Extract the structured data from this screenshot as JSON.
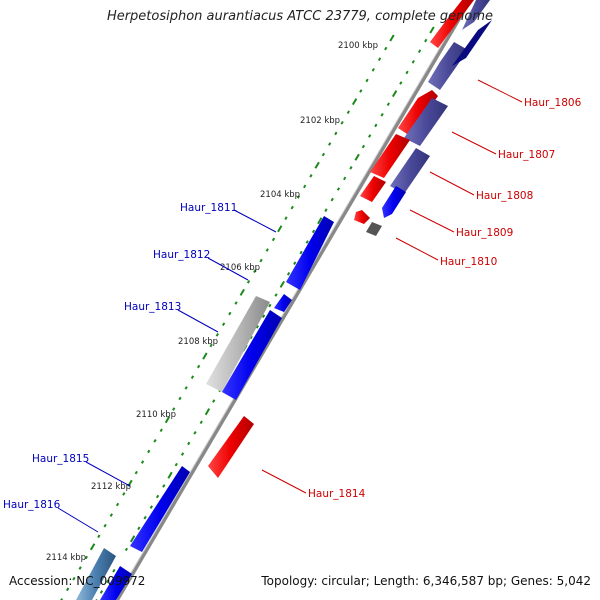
{
  "title": "Herpetosiphon aurantiacus ATCC 23779, complete genome",
  "accession": "Accession: NC_009972",
  "summary": "Topology: circular; Length: 6,346,587 bp; Genes: 5,042",
  "colors": {
    "forward_gene": "#0000ee",
    "reverse_gene": "#ee0000",
    "forward_gene_muted": "#4a4a9a",
    "pseudo_gene": "#aaaaaa",
    "forward_label": "#0000bb",
    "reverse_label": "#cc0000",
    "backbone": "#888888",
    "tick": "#1a8a1a"
  },
  "scale_labels": [
    "2100 kbp",
    "2102 kbp",
    "2104 kbp",
    "2106 kbp",
    "2108 kbp",
    "2110 kbp",
    "2112 kbp",
    "2114 kbp"
  ],
  "forward_genes": [
    "Haur_1811",
    "Haur_1812",
    "Haur_1813",
    "Haur_1815",
    "Haur_1816"
  ],
  "reverse_genes": [
    "Haur_1806",
    "Haur_1807",
    "Haur_1808",
    "Haur_1809",
    "Haur_1810",
    "Haur_1814"
  ]
}
